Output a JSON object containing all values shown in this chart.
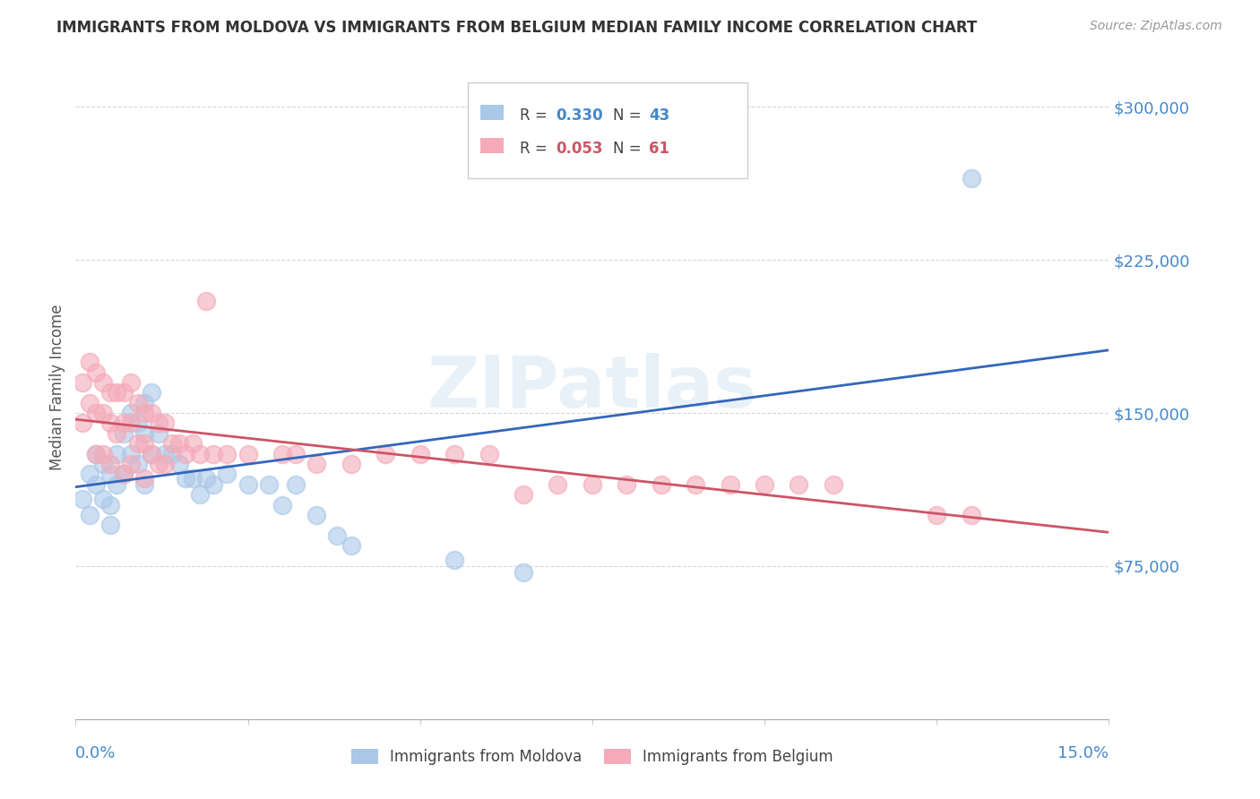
{
  "title": "IMMIGRANTS FROM MOLDOVA VS IMMIGRANTS FROM BELGIUM MEDIAN FAMILY INCOME CORRELATION CHART",
  "source": "Source: ZipAtlas.com",
  "ylabel": "Median Family Income",
  "xlim": [
    0.0,
    0.15
  ],
  "ylim": [
    0,
    325000
  ],
  "yticks": [
    75000,
    150000,
    225000,
    300000
  ],
  "ytick_labels": [
    "$75,000",
    "$150,000",
    "$225,000",
    "$300,000"
  ],
  "ytick_color": "#4488cc",
  "moldova_R": 0.33,
  "moldova_N": 43,
  "belgium_R": 0.053,
  "belgium_N": 61,
  "moldova_scatter_color": "#aac8e8",
  "belgium_scatter_color": "#f4aab8",
  "moldova_line_color": "#3366bb",
  "belgium_line_color": "#cc5566",
  "watermark": "ZIPatlas",
  "legend_R1": "R = 0.330",
  "legend_N1": "N = 43",
  "legend_R2": "R = 0.053",
  "legend_N2": "N = 61",
  "legend_color_blue": "#4488cc",
  "legend_color_pink": "#cc5566",
  "moldova_x": [
    0.001,
    0.002,
    0.002,
    0.003,
    0.003,
    0.004,
    0.004,
    0.005,
    0.005,
    0.005,
    0.006,
    0.006,
    0.007,
    0.007,
    0.008,
    0.008,
    0.009,
    0.009,
    0.01,
    0.01,
    0.01,
    0.011,
    0.011,
    0.012,
    0.013,
    0.014,
    0.015,
    0.016,
    0.017,
    0.018,
    0.019,
    0.02,
    0.022,
    0.025,
    0.028,
    0.03,
    0.032,
    0.035,
    0.038,
    0.04,
    0.055,
    0.065,
    0.13
  ],
  "moldova_y": [
    108000,
    120000,
    100000,
    130000,
    115000,
    125000,
    108000,
    120000,
    105000,
    95000,
    130000,
    115000,
    140000,
    120000,
    150000,
    130000,
    145000,
    125000,
    155000,
    140000,
    115000,
    160000,
    130000,
    140000,
    130000,
    130000,
    125000,
    118000,
    118000,
    110000,
    118000,
    115000,
    120000,
    115000,
    115000,
    105000,
    115000,
    100000,
    90000,
    85000,
    78000,
    72000,
    265000
  ],
  "belgium_x": [
    0.001,
    0.001,
    0.002,
    0.002,
    0.003,
    0.003,
    0.003,
    0.004,
    0.004,
    0.004,
    0.005,
    0.005,
    0.005,
    0.006,
    0.006,
    0.007,
    0.007,
    0.007,
    0.008,
    0.008,
    0.008,
    0.009,
    0.009,
    0.01,
    0.01,
    0.01,
    0.011,
    0.011,
    0.012,
    0.012,
    0.013,
    0.013,
    0.014,
    0.015,
    0.016,
    0.017,
    0.018,
    0.019,
    0.02,
    0.022,
    0.025,
    0.03,
    0.032,
    0.035,
    0.04,
    0.045,
    0.05,
    0.055,
    0.06,
    0.065,
    0.07,
    0.075,
    0.08,
    0.085,
    0.09,
    0.095,
    0.1,
    0.105,
    0.11,
    0.125,
    0.13
  ],
  "belgium_y": [
    165000,
    145000,
    175000,
    155000,
    170000,
    150000,
    130000,
    165000,
    150000,
    130000,
    160000,
    145000,
    125000,
    160000,
    140000,
    160000,
    145000,
    120000,
    165000,
    145000,
    125000,
    155000,
    135000,
    150000,
    135000,
    118000,
    150000,
    130000,
    145000,
    125000,
    145000,
    125000,
    135000,
    135000,
    130000,
    135000,
    130000,
    205000,
    130000,
    130000,
    130000,
    130000,
    130000,
    125000,
    125000,
    130000,
    130000,
    130000,
    130000,
    110000,
    115000,
    115000,
    115000,
    115000,
    115000,
    115000,
    115000,
    115000,
    115000,
    100000,
    100000
  ]
}
